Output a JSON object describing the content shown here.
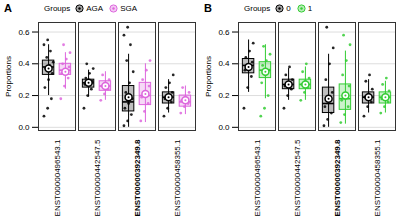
{
  "chart_data": [
    {
      "type": "box",
      "title": "A",
      "y_label": "Proportions",
      "legend_title": "Groups",
      "legend": "top-right",
      "grid": true,
      "categories": [
        "ENST00000496543.1",
        "ENST00000442547.5",
        "ENST00000392349.8",
        "ENST00000458355.1"
      ],
      "ylim": [
        -0.02,
        0.66
      ],
      "yticks": [
        {
          "value": 0,
          "label": "0.0"
        },
        0.2,
        0.4,
        0.6
      ],
      "series": [
        {
          "name": "AGA",
          "color": "#000000",
          "boxes": [
            {
              "min": 0.2,
              "q1": 0.33,
              "median": 0.38,
              "q3": 0.42,
              "max": 0.52,
              "mean": 0.37,
              "points": [
                0.07,
                0.12,
                0.18,
                0.25,
                0.3,
                0.34,
                0.37,
                0.39,
                0.41,
                0.44,
                0.48,
                0.52,
                0.55
              ]
            },
            {
              "min": 0.19,
              "q1": 0.25,
              "median": 0.28,
              "q3": 0.3,
              "max": 0.36,
              "mean": 0.28,
              "points": [
                0.12,
                0.2,
                0.24,
                0.27,
                0.28,
                0.29,
                0.31,
                0.34,
                0.37,
                0.4
              ]
            },
            {
              "min": 0.0,
              "q1": 0.1,
              "median": 0.16,
              "q3": 0.26,
              "max": 0.46,
              "mean": 0.19,
              "points": [
                0.01,
                0.04,
                0.08,
                0.12,
                0.15,
                0.18,
                0.22,
                0.28,
                0.35,
                0.42,
                0.52,
                0.58,
                0.63
              ]
            },
            {
              "min": 0.09,
              "q1": 0.15,
              "median": 0.19,
              "q3": 0.22,
              "max": 0.3,
              "mean": 0.19,
              "points": [
                0.07,
                0.12,
                0.16,
                0.18,
                0.2,
                0.22,
                0.25,
                0.28,
                0.33
              ]
            }
          ]
        },
        {
          "name": "SGA",
          "color": "#dd66dd",
          "boxes": [
            {
              "min": 0.24,
              "q1": 0.33,
              "median": 0.36,
              "q3": 0.4,
              "max": 0.47,
              "mean": 0.35,
              "points": [
                0.18,
                0.26,
                0.31,
                0.34,
                0.36,
                0.38,
                0.4,
                0.43,
                0.47,
                0.52
              ]
            },
            {
              "min": 0.17,
              "q1": 0.23,
              "median": 0.26,
              "q3": 0.29,
              "max": 0.35,
              "mean": 0.26,
              "points": [
                0.17,
                0.21,
                0.24,
                0.26,
                0.28,
                0.3,
                0.33
              ]
            },
            {
              "min": 0.03,
              "q1": 0.14,
              "median": 0.2,
              "q3": 0.28,
              "max": 0.4,
              "mean": 0.21,
              "points": [
                0.04,
                0.1,
                0.15,
                0.19,
                0.22,
                0.26,
                0.3,
                0.36,
                0.42
              ]
            },
            {
              "min": 0.08,
              "q1": 0.13,
              "median": 0.16,
              "q3": 0.2,
              "max": 0.26,
              "mean": 0.17,
              "points": [
                0.09,
                0.13,
                0.15,
                0.17,
                0.19,
                0.22,
                0.25
              ]
            }
          ]
        }
      ]
    },
    {
      "type": "box",
      "title": "B",
      "y_label": "Proportions",
      "legend_title": "Groups",
      "legend": "top-right",
      "grid": true,
      "categories": [
        "ENST00000496543.1",
        "ENST00000442547.5",
        "ENST00000392349.8",
        "ENST00000458355.1"
      ],
      "ylim": [
        -0.02,
        0.66
      ],
      "yticks": [
        {
          "value": 0,
          "label": "0.0"
        },
        0.2,
        0.4,
        0.6
      ],
      "series": [
        {
          "name": "0",
          "color": "#000000",
          "boxes": [
            {
              "min": 0.22,
              "q1": 0.34,
              "median": 0.39,
              "q3": 0.43,
              "max": 0.55,
              "mean": 0.38,
              "points": [
                0.12,
                0.25,
                0.32,
                0.36,
                0.39,
                0.41,
                0.44,
                0.48,
                0.53
              ]
            },
            {
              "min": 0.17,
              "q1": 0.24,
              "median": 0.27,
              "q3": 0.3,
              "max": 0.37,
              "mean": 0.27,
              "points": [
                0.12,
                0.2,
                0.24,
                0.26,
                0.28,
                0.3,
                0.33,
                0.38
              ]
            },
            {
              "min": 0.0,
              "q1": 0.09,
              "median": 0.15,
              "q3": 0.25,
              "max": 0.46,
              "mean": 0.18,
              "points": [
                0.01,
                0.05,
                0.09,
                0.13,
                0.17,
                0.22,
                0.3,
                0.4,
                0.5,
                0.63
              ]
            },
            {
              "min": 0.09,
              "q1": 0.15,
              "median": 0.19,
              "q3": 0.22,
              "max": 0.3,
              "mean": 0.19,
              "points": [
                0.07,
                0.13,
                0.16,
                0.19,
                0.21,
                0.24,
                0.29,
                0.33
              ]
            }
          ]
        },
        {
          "name": "1",
          "color": "#33cc33",
          "boxes": [
            {
              "min": 0.18,
              "q1": 0.31,
              "median": 0.36,
              "q3": 0.41,
              "max": 0.52,
              "mean": 0.35,
              "points": [
                0.07,
                0.12,
                0.2,
                0.28,
                0.33,
                0.36,
                0.39,
                0.42,
                0.46,
                0.51
              ]
            },
            {
              "min": 0.17,
              "q1": 0.24,
              "median": 0.27,
              "q3": 0.3,
              "max": 0.38,
              "mean": 0.27,
              "points": [
                0.17,
                0.22,
                0.25,
                0.27,
                0.29,
                0.31,
                0.35,
                0.4
              ]
            },
            {
              "min": 0.02,
              "q1": 0.11,
              "median": 0.18,
              "q3": 0.27,
              "max": 0.48,
              "mean": 0.2,
              "points": [
                0.03,
                0.08,
                0.13,
                0.17,
                0.21,
                0.26,
                0.33,
                0.42,
                0.52,
                0.58
              ]
            },
            {
              "min": 0.09,
              "q1": 0.15,
              "median": 0.19,
              "q3": 0.22,
              "max": 0.29,
              "mean": 0.19,
              "points": [
                0.09,
                0.13,
                0.16,
                0.18,
                0.2,
                0.23,
                0.27,
                0.31
              ]
            }
          ]
        }
      ]
    }
  ]
}
